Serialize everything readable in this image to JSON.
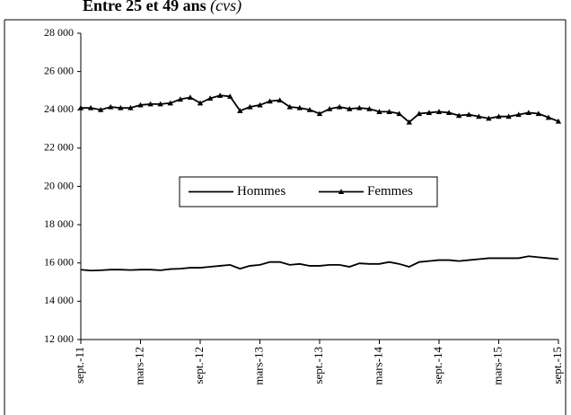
{
  "chart_data": {
    "type": "line",
    "title": "Entre 25 et 49 ans",
    "title_note": "(cvs)",
    "categories": [
      "sept.-11",
      null,
      null,
      null,
      null,
      null,
      "mars-12",
      null,
      null,
      null,
      null,
      null,
      "sept.-12",
      null,
      null,
      null,
      null,
      null,
      "mars-13",
      null,
      null,
      null,
      null,
      null,
      "sept.-13",
      null,
      null,
      null,
      null,
      null,
      "mars-14",
      null,
      null,
      null,
      null,
      null,
      "sept.-14",
      null,
      null,
      null,
      null,
      null,
      "mars-15",
      null,
      null,
      null,
      null,
      null,
      "sept.-15"
    ],
    "series": [
      {
        "name": "Hommes",
        "color": "#000000",
        "marker": "none",
        "values": [
          15650,
          15600,
          15620,
          15650,
          15650,
          15630,
          15650,
          15650,
          15620,
          15680,
          15700,
          15750,
          15750,
          15800,
          15850,
          15900,
          15700,
          15850,
          15900,
          16050,
          16050,
          15900,
          15950,
          15850,
          15850,
          15900,
          15900,
          15800,
          15980,
          15950,
          15950,
          16050,
          15950,
          15800,
          16050,
          16100,
          16150,
          16150,
          16100,
          16150,
          16200,
          16250,
          16250,
          16250,
          16250,
          16350,
          16300,
          16250,
          16200
        ]
      },
      {
        "name": "Femmes",
        "color": "#000000",
        "marker": "triangle",
        "values": [
          24100,
          24100,
          24000,
          24150,
          24100,
          24100,
          24250,
          24300,
          24300,
          24350,
          24550,
          24650,
          24350,
          24600,
          24750,
          24700,
          23950,
          24150,
          24250,
          24450,
          24500,
          24150,
          24100,
          24000,
          23800,
          24050,
          24150,
          24050,
          24100,
          24050,
          23900,
          23900,
          23800,
          23350,
          23800,
          23850,
          23900,
          23850,
          23700,
          23750,
          23650,
          23550,
          23650,
          23650,
          23750,
          23850,
          23800,
          23600,
          23400
        ]
      }
    ],
    "ylim": [
      12000,
      28000
    ],
    "yticks": [
      {
        "value": 12000,
        "label": "12 000"
      },
      {
        "value": 14000,
        "label": "14 000"
      },
      {
        "value": 16000,
        "label": "16 000"
      },
      {
        "value": 18000,
        "label": "18 000"
      },
      {
        "value": 20000,
        "label": "20 000"
      },
      {
        "value": 22000,
        "label": "22 000"
      },
      {
        "value": 24000,
        "label": "24 000"
      },
      {
        "value": 26000,
        "label": "26 000"
      },
      {
        "value": 28000,
        "label": "28 000"
      }
    ],
    "grid": false,
    "legend": "center"
  }
}
